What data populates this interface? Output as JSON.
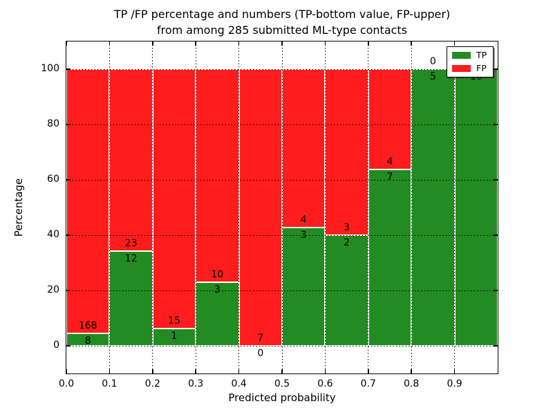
{
  "title": {
    "line1": "TP /FP percentage and numbers (TP-bottom value, FP-upper)",
    "line2": "from among 285 submitted ML-type contacts"
  },
  "axes": {
    "xlabel": "Predicted probability",
    "ylabel": "Percentage",
    "x_tick_labels": [
      "0.0",
      "0.1",
      "0.2",
      "0.3",
      "0.4",
      "0.5",
      "0.6",
      "0.7",
      "0.8",
      "0.9"
    ],
    "x_tick_values": [
      0.0,
      0.1,
      0.2,
      0.3,
      0.4,
      0.5,
      0.6,
      0.7,
      0.8,
      0.9
    ],
    "y_tick_labels": [
      "0",
      "20",
      "40",
      "60",
      "80",
      "100"
    ],
    "y_tick_values": [
      0,
      20,
      40,
      60,
      80,
      100
    ],
    "xlim": [
      0,
      1
    ],
    "ylim": [
      -10,
      110
    ],
    "grid": "dotted"
  },
  "legend": {
    "position": "upper-right",
    "items": [
      {
        "label": "TP",
        "color": "#228b22"
      },
      {
        "label": "FP",
        "color": "#ff1c1c"
      }
    ]
  },
  "colors": {
    "tp": "#228b22",
    "fp": "#ff1c1c",
    "background": "#ffffff",
    "grid": "#000000"
  },
  "chart_data": {
    "type": "bar",
    "stacked": true,
    "normalized": "each bar shows TP/FP share in percent, stacks sum to 100%",
    "total_contacts": 285,
    "title": "TP /FP percentage and numbers (TP-bottom value, FP-upper) from among 285 submitted ML-type contacts",
    "xlabel": "Predicted probability",
    "ylabel": "Percentage",
    "xlim": [
      0,
      1
    ],
    "ylim": [
      -10,
      110
    ],
    "bin_width": 0.1,
    "categories": [
      "0.0-0.1",
      "0.1-0.2",
      "0.2-0.3",
      "0.3-0.4",
      "0.4-0.5",
      "0.5-0.6",
      "0.6-0.7",
      "0.7-0.8",
      "0.8-0.9",
      "0.9-1.0"
    ],
    "series": [
      {
        "name": "TP",
        "color": "#228b22",
        "values": [
          8,
          12,
          1,
          3,
          0,
          3,
          2,
          7,
          5,
          10
        ]
      },
      {
        "name": "FP",
        "color": "#ff1c1c",
        "values": [
          168,
          23,
          15,
          10,
          7,
          4,
          3,
          4,
          0,
          0
        ]
      }
    ],
    "bins": [
      {
        "x_start": 0.0,
        "tp": 8,
        "fp": 168,
        "tp_pct": 4.5
      },
      {
        "x_start": 0.1,
        "tp": 12,
        "fp": 23,
        "tp_pct": 34.3
      },
      {
        "x_start": 0.2,
        "tp": 1,
        "fp": 15,
        "tp_pct": 6.3
      },
      {
        "x_start": 0.3,
        "tp": 3,
        "fp": 10,
        "tp_pct": 23.1
      },
      {
        "x_start": 0.4,
        "tp": 0,
        "fp": 7,
        "tp_pct": 0.0
      },
      {
        "x_start": 0.5,
        "tp": 3,
        "fp": 4,
        "tp_pct": 42.9
      },
      {
        "x_start": 0.6,
        "tp": 2,
        "fp": 3,
        "tp_pct": 40.0
      },
      {
        "x_start": 0.7,
        "tp": 7,
        "fp": 4,
        "tp_pct": 63.6
      },
      {
        "x_start": 0.8,
        "tp": 5,
        "fp": 0,
        "tp_pct": 100.0
      },
      {
        "x_start": 0.9,
        "tp": 10,
        "fp": 0,
        "tp_pct": 100.0
      }
    ],
    "legend_entries": [
      "TP",
      "FP"
    ],
    "grid": true,
    "legend_position": "upper right"
  }
}
